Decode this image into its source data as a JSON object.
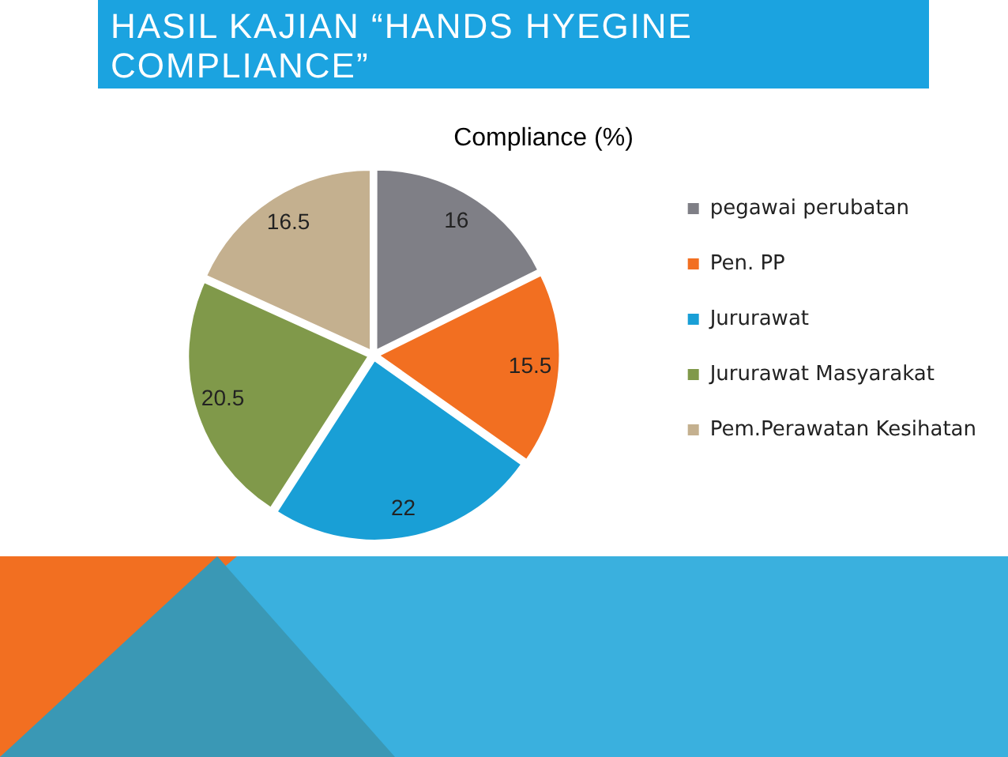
{
  "chart_data": {
    "type": "pie",
    "title": "HASIL KAJIAN “HANDS HYEGINE COMPLIANCE”",
    "subtitle": "Compliance (%)",
    "categories": [
      "pegawai perubatan",
      "Pen. PP",
      "Jururawat",
      "Jururawat Masyarakat",
      "Pem.Perawatan Kesihatan"
    ],
    "values": [
      16,
      15.5,
      22,
      20.5,
      16.5
    ],
    "colors": [
      "#7f7f86",
      "#f26f21",
      "#199fd6",
      "#80994a",
      "#c4b08f"
    ],
    "data_labels": true,
    "legend": "right"
  }
}
